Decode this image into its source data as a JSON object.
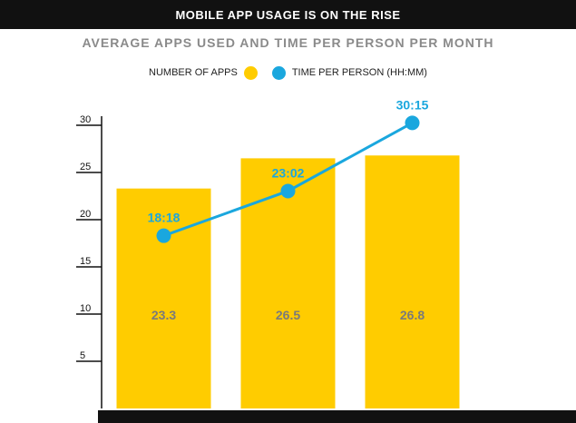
{
  "header": {
    "banner_title": "MOBILE APP USAGE IS ON THE RISE"
  },
  "chart_data": {
    "type": "bar",
    "title": "MOBILE APP USAGE IS ON THE RISE",
    "subtitle": "AVERAGE APPS USED AND TIME PER PERSON PER MONTH",
    "xlabel": "",
    "ylabel": "",
    "categories": [
      "",
      "",
      ""
    ],
    "ylim": [
      0,
      30
    ],
    "yticks": [
      "5",
      "10",
      "15",
      "20",
      "25",
      "30"
    ],
    "grid": false,
    "legend_placement": "top-center",
    "legend": [
      {
        "label": "NUMBER OF APPS",
        "color": "#ffcc00"
      },
      {
        "label": "TIME PER PERSON  (HH:MM)",
        "color": "#1aa7de"
      }
    ],
    "series": [
      {
        "name": "NUMBER OF APPS",
        "type": "bar",
        "color": "#ffcc00",
        "values": [
          23.3,
          26.5,
          26.8
        ],
        "labels": [
          "23.3",
          "26.5",
          "26.8"
        ]
      },
      {
        "name": "TIME PER PERSON  (HH:MM)",
        "type": "line",
        "color": "#1aa7de",
        "values": [
          18.3,
          23.033,
          30.25
        ],
        "labels": [
          "18:18",
          "23:02",
          "30:15"
        ]
      }
    ]
  }
}
